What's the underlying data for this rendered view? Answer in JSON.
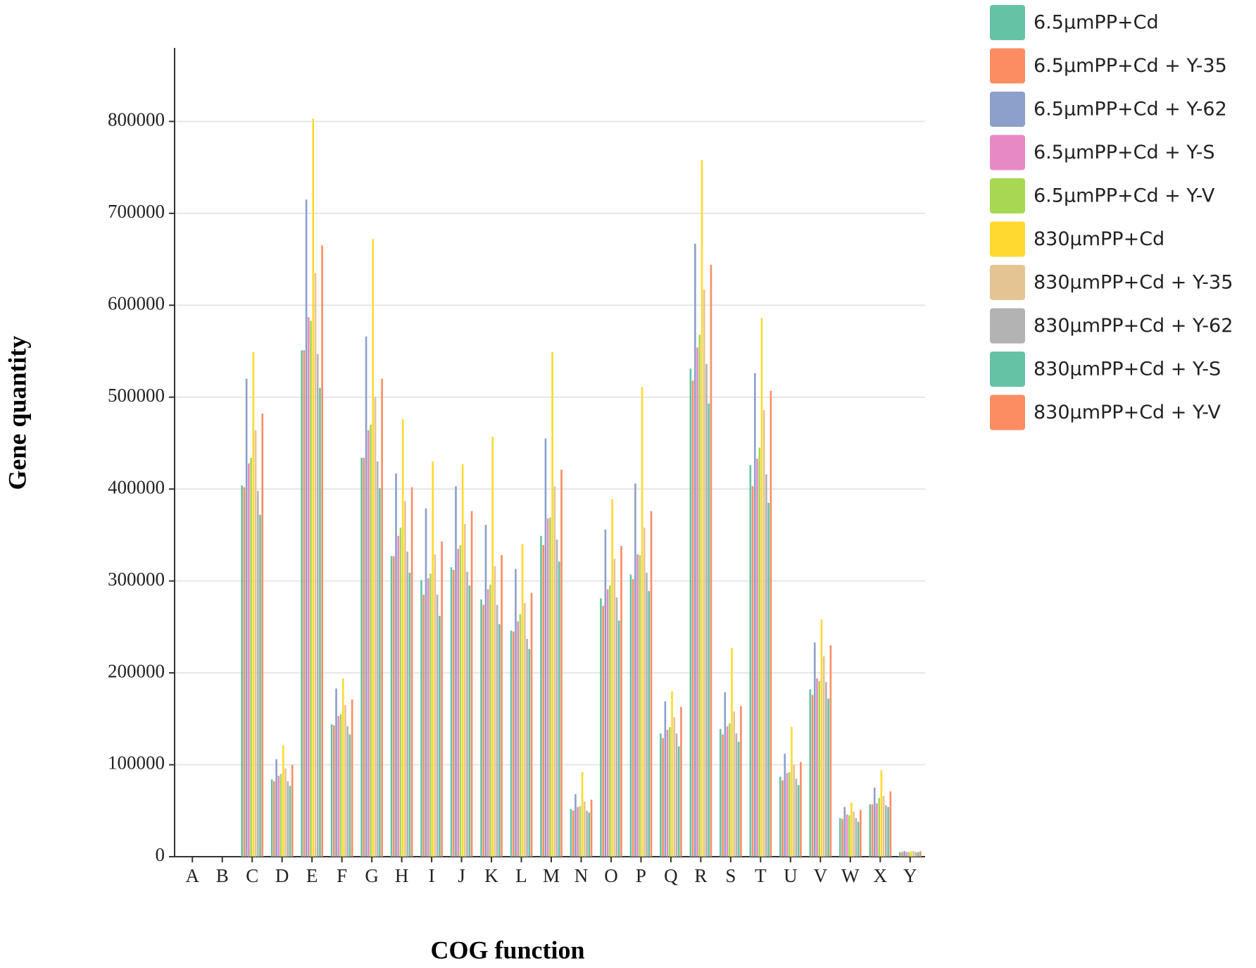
{
  "chart_data": {
    "type": "bar",
    "x_label": "COG  function",
    "y_label": "Gene quantity",
    "categories": [
      "A",
      "B",
      "C",
      "D",
      "E",
      "F",
      "G",
      "H",
      "I",
      "J",
      "K",
      "L",
      "M",
      "N",
      "O",
      "P",
      "Q",
      "R",
      "S",
      "T",
      "U",
      "V",
      "W",
      "X",
      "Y"
    ],
    "ylim": [
      0,
      880000
    ],
    "yticks": [
      0,
      100000,
      200000,
      300000,
      400000,
      500000,
      600000,
      700000,
      800000
    ],
    "grid": true,
    "legend": "right",
    "series": [
      {
        "name": "6.5μmPP+Cd",
        "color": "#66c2a5",
        "values": [
          0,
          0,
          404000,
          84000,
          551000,
          144000,
          434000,
          327000,
          301000,
          315000,
          280000,
          246000,
          349000,
          52000,
          281000,
          307000,
          134000,
          531000,
          139000,
          426000,
          87000,
          182000,
          42000,
          57000,
          5000
        ]
      },
      {
        "name": "6.5μmPP+Cd + Y-35",
        "color": "#fc8d62",
        "values": [
          0,
          0,
          402000,
          82000,
          551000,
          143000,
          434000,
          327000,
          285000,
          312000,
          274000,
          245000,
          339000,
          50000,
          273000,
          302000,
          129000,
          518000,
          133000,
          403000,
          83000,
          176000,
          41000,
          57000,
          5000
        ]
      },
      {
        "name": "6.5μmPP+Cd + Y-62",
        "color": "#8da0cb",
        "values": [
          0,
          0,
          520000,
          106000,
          715000,
          183000,
          566000,
          417000,
          379000,
          403000,
          361000,
          313000,
          455000,
          68000,
          356000,
          406000,
          169000,
          667000,
          179000,
          526000,
          112000,
          233000,
          54000,
          75000,
          6000
        ]
      },
      {
        "name": "6.5μmPP+Cd + Y-S",
        "color": "#e78ac3",
        "values": [
          0,
          0,
          428000,
          88000,
          587000,
          153000,
          464000,
          349000,
          303000,
          335000,
          291000,
          256000,
          368000,
          54000,
          291000,
          329000,
          138000,
          554000,
          142000,
          433000,
          91000,
          194000,
          46000,
          58000,
          5000
        ]
      },
      {
        "name": "6.5μmPP+Cd + Y-V",
        "color": "#a6d854",
        "values": [
          0,
          0,
          434000,
          90000,
          583000,
          155000,
          470000,
          358000,
          308000,
          339000,
          296000,
          264000,
          369000,
          55000,
          295000,
          328000,
          141000,
          568000,
          145000,
          445000,
          92000,
          191000,
          45000,
          64000,
          5000
        ]
      },
      {
        "name": "830μmPP+Cd",
        "color": "#ffd92f",
        "values": [
          0,
          0,
          549000,
          121000,
          803000,
          194000,
          672000,
          476000,
          430000,
          427000,
          457000,
          340000,
          549000,
          92000,
          389000,
          511000,
          180000,
          758000,
          227000,
          586000,
          141000,
          258000,
          59000,
          94000,
          6000
        ]
      },
      {
        "name": "830μmPP+Cd + Y-35",
        "color": "#e5c494",
        "values": [
          0,
          0,
          464000,
          96000,
          635000,
          165000,
          500000,
          387000,
          329000,
          362000,
          316000,
          276000,
          403000,
          60000,
          324000,
          358000,
          152000,
          617000,
          158000,
          486000,
          100000,
          218000,
          49000,
          66000,
          6000
        ]
      },
      {
        "name": "830μmPP+Cd + Y-62",
        "color": "#b3b3b3",
        "values": [
          0,
          0,
          398000,
          82000,
          547000,
          142000,
          430000,
          332000,
          285000,
          310000,
          274000,
          237000,
          345000,
          50000,
          282000,
          309000,
          134000,
          536000,
          134000,
          416000,
          85000,
          190000,
          42000,
          56000,
          5000
        ]
      },
      {
        "name": "830μmPP+Cd + Y-S",
        "color": "#66c2a5",
        "values": [
          0,
          0,
          372000,
          77000,
          510000,
          133000,
          401000,
          309000,
          262000,
          295000,
          253000,
          226000,
          321000,
          48000,
          257000,
          289000,
          120000,
          493000,
          125000,
          385000,
          78000,
          172000,
          38000,
          54000,
          5000
        ]
      },
      {
        "name": "830μmPP+Cd + Y-V",
        "color": "#fc8d62",
        "values": [
          0,
          0,
          482000,
          100000,
          665000,
          171000,
          520000,
          402000,
          343000,
          376000,
          328000,
          287000,
          421000,
          62000,
          338000,
          376000,
          163000,
          644000,
          164000,
          507000,
          103000,
          230000,
          51000,
          71000,
          6000
        ]
      }
    ]
  }
}
